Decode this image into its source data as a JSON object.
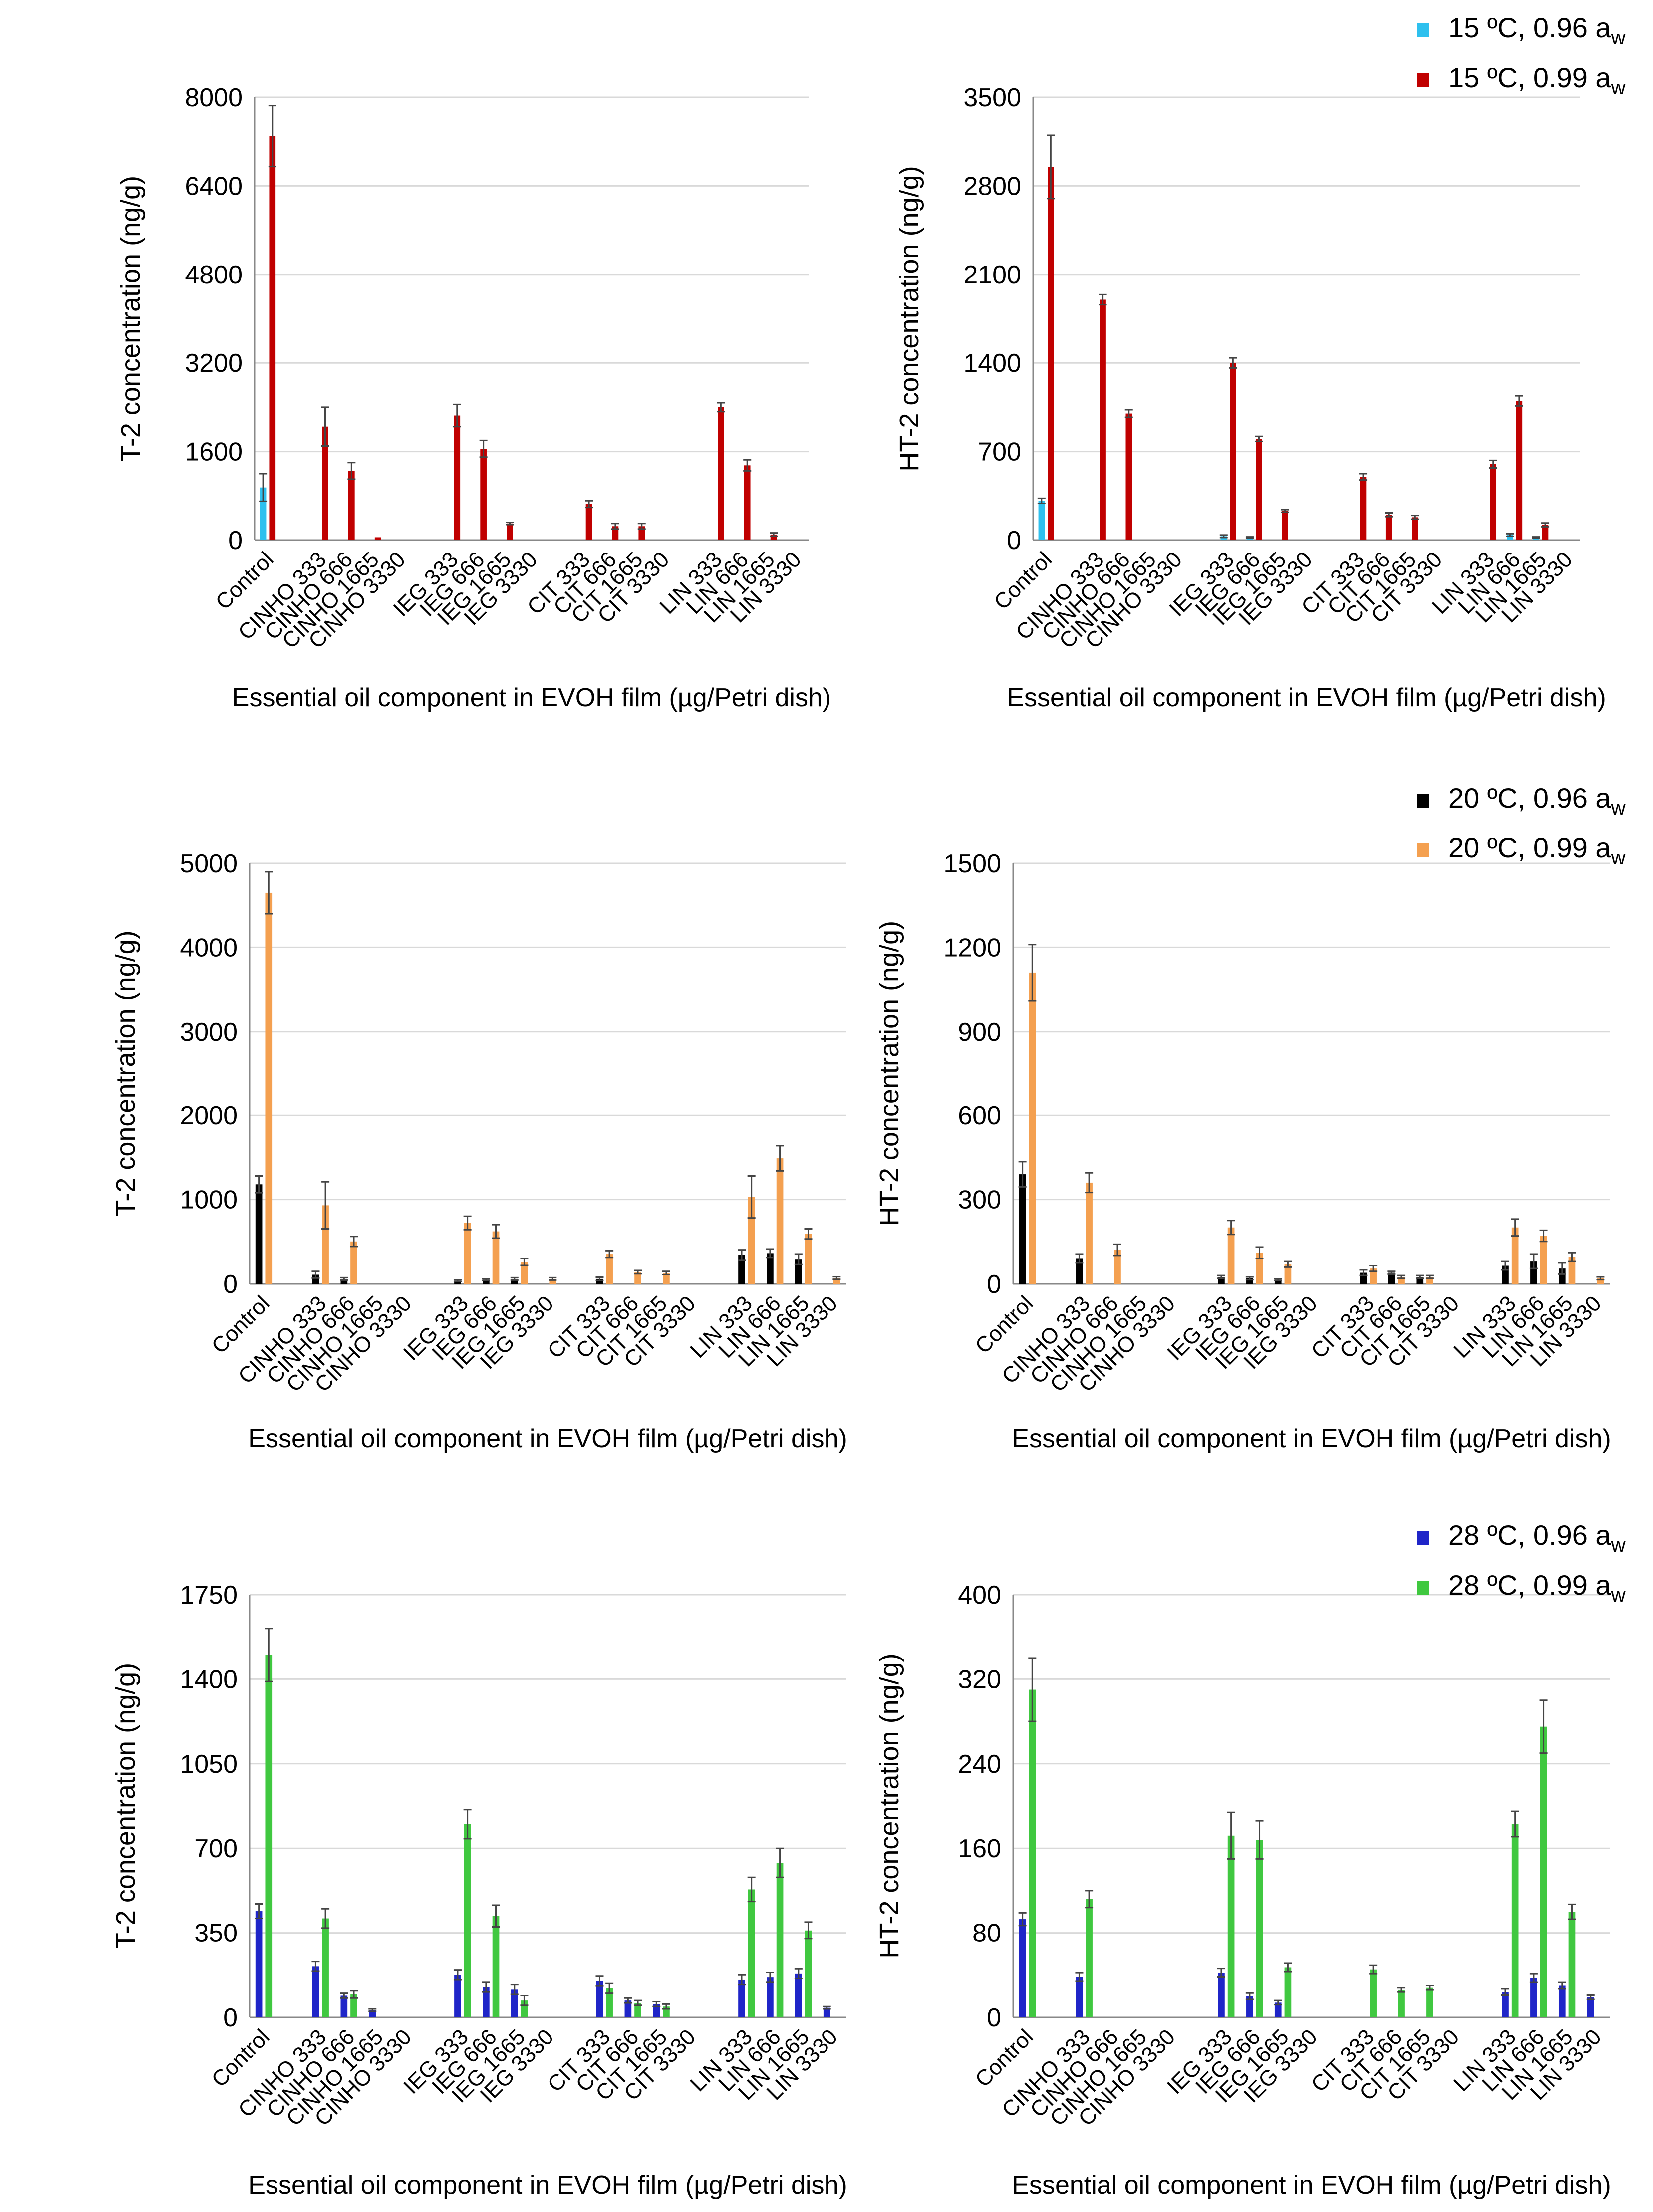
{
  "categories": [
    "Control",
    "CINHO 333",
    "CINHO 666",
    "CINHO 1665",
    "CINHO 3330",
    "IEG 333",
    "IEG 666",
    "IEG 1665",
    "IEG 3330",
    "CIT 333",
    "CIT 666",
    "CIT 1665",
    "CIT 3330",
    "LIN 333",
    "LIN 666",
    "LIN 1665",
    "LIN 3330"
  ],
  "xlabel": "Essential oil component in EVOH film (µg/Petri dish)",
  "legends": [
    {
      "items": [
        {
          "label": "15 ºC, 0.96 a",
          "sub": "w",
          "color": "#2EC0EE"
        },
        {
          "label": "15 ºC, 0.99 a",
          "sub": "w",
          "color": "#C00000"
        }
      ]
    },
    {
      "items": [
        {
          "label": "20 ºC, 0.96 a",
          "sub": "w",
          "color": "#000000"
        },
        {
          "label": "20 ºC, 0.99 a",
          "sub": "w",
          "color": "#F4A050"
        }
      ]
    },
    {
      "items": [
        {
          "label": "28 ºC, 0.96 a",
          "sub": "w",
          "color": "#1F25C8"
        },
        {
          "label": "28 ºC, 0.99 a",
          "sub": "w",
          "color": "#40C840"
        }
      ]
    }
  ],
  "chart_data": [
    {
      "type": "bar",
      "row": 0,
      "col": 0,
      "ylabel": "T-2 concentration (ng/g)",
      "ylim": [
        0,
        8000
      ],
      "ticks": [
        0,
        1600,
        3200,
        4800,
        6400,
        8000
      ],
      "series": [
        {
          "name": "15 ºC, 0.96 aw",
          "color": "#2EC0EE",
          "values": [
            950,
            0,
            0,
            0,
            0,
            0,
            0,
            0,
            0,
            0,
            0,
            0,
            0,
            0,
            0,
            0,
            0
          ],
          "errors": [
            250,
            0,
            0,
            0,
            0,
            0,
            0,
            0,
            0,
            0,
            0,
            0,
            0,
            0,
            0,
            0,
            0
          ]
        },
        {
          "name": "15 ºC, 0.99 aw",
          "color": "#C00000",
          "values": [
            7300,
            2050,
            1250,
            50,
            0,
            2250,
            1650,
            300,
            0,
            650,
            250,
            250,
            0,
            2400,
            1350,
            100,
            0
          ],
          "errors": [
            550,
            350,
            150,
            0,
            0,
            200,
            150,
            20,
            0,
            60,
            50,
            50,
            0,
            80,
            100,
            30,
            0
          ]
        }
      ]
    },
    {
      "type": "bar",
      "row": 0,
      "col": 1,
      "ylabel": "HT-2 concentration (ng/g)",
      "ylim": [
        0,
        3500
      ],
      "ticks": [
        0,
        700,
        1400,
        2100,
        2800,
        3500
      ],
      "series": [
        {
          "name": "15 ºC, 0.96 aw",
          "color": "#2EC0EE",
          "values": [
            310,
            0,
            0,
            0,
            0,
            30,
            20,
            0,
            0,
            0,
            0,
            0,
            0,
            0,
            40,
            20,
            0
          ],
          "errors": [
            20,
            0,
            0,
            0,
            0,
            10,
            5,
            0,
            0,
            0,
            0,
            0,
            0,
            0,
            10,
            5,
            0
          ]
        },
        {
          "name": "15 ºC, 0.99 aw",
          "color": "#C00000",
          "values": [
            2950,
            1900,
            1000,
            0,
            0,
            1400,
            800,
            230,
            0,
            500,
            200,
            180,
            0,
            600,
            1100,
            120,
            0
          ],
          "errors": [
            250,
            40,
            30,
            0,
            0,
            40,
            20,
            10,
            0,
            25,
            15,
            15,
            0,
            30,
            40,
            15,
            0
          ]
        }
      ]
    },
    {
      "type": "bar",
      "row": 1,
      "col": 0,
      "ylabel": "T-2 concentration (ng/g)",
      "ylim": [
        0,
        5000
      ],
      "ticks": [
        0,
        1000,
        2000,
        3000,
        4000,
        5000
      ],
      "series": [
        {
          "name": "20 ºC, 0.96 aw",
          "color": "#000000",
          "values": [
            1180,
            110,
            60,
            0,
            0,
            40,
            50,
            60,
            0,
            60,
            0,
            0,
            0,
            340,
            360,
            290,
            0
          ],
          "errors": [
            100,
            40,
            15,
            0,
            0,
            10,
            10,
            15,
            0,
            20,
            0,
            0,
            0,
            60,
            50,
            60,
            0
          ]
        },
        {
          "name": "20 ºC, 0.99 aw",
          "color": "#F4A050",
          "values": [
            4650,
            930,
            500,
            0,
            0,
            720,
            620,
            260,
            60,
            350,
            140,
            130,
            0,
            1030,
            1490,
            590,
            70
          ],
          "errors": [
            250,
            280,
            60,
            0,
            0,
            80,
            80,
            40,
            15,
            40,
            20,
            20,
            0,
            250,
            150,
            60,
            15
          ]
        }
      ]
    },
    {
      "type": "bar",
      "row": 1,
      "col": 1,
      "ylabel": "HT-2 concentration (ng/g)",
      "ylim": [
        0,
        1500
      ],
      "ticks": [
        0,
        300,
        600,
        900,
        1200,
        1500
      ],
      "series": [
        {
          "name": "20 ºC, 0.96 aw",
          "color": "#000000",
          "values": [
            390,
            90,
            0,
            0,
            0,
            25,
            20,
            15,
            0,
            40,
            40,
            25,
            0,
            65,
            80,
            55,
            0
          ],
          "errors": [
            45,
            15,
            0,
            0,
            0,
            5,
            5,
            3,
            0,
            10,
            5,
            5,
            0,
            15,
            25,
            20,
            0
          ]
        },
        {
          "name": "20 ºC, 0.99 aw",
          "color": "#F4A050",
          "values": [
            1110,
            360,
            120,
            0,
            0,
            200,
            110,
            70,
            0,
            55,
            25,
            25,
            0,
            200,
            170,
            95,
            20
          ],
          "errors": [
            100,
            35,
            20,
            0,
            0,
            25,
            20,
            10,
            0,
            10,
            5,
            5,
            0,
            30,
            20,
            15,
            5
          ]
        }
      ]
    },
    {
      "type": "bar",
      "row": 2,
      "col": 0,
      "ylabel": "T-2 concentration (ng/g)",
      "ylim": [
        0,
        1750
      ],
      "ticks": [
        0,
        350,
        700,
        1050,
        1400,
        1750
      ],
      "series": [
        {
          "name": "28 ºC, 0.96 aw",
          "color": "#1F25C8",
          "values": [
            440,
            210,
            90,
            30,
            0,
            175,
            125,
            115,
            0,
            150,
            70,
            55,
            0,
            155,
            165,
            180,
            40
          ],
          "errors": [
            30,
            20,
            10,
            5,
            0,
            20,
            20,
            20,
            0,
            20,
            10,
            10,
            0,
            20,
            20,
            20,
            5
          ]
        },
        {
          "name": "28 ºC, 0.99 aw",
          "color": "#40C840",
          "values": [
            1500,
            410,
            95,
            0,
            0,
            800,
            420,
            70,
            0,
            120,
            60,
            45,
            0,
            530,
            640,
            360,
            0
          ],
          "errors": [
            110,
            40,
            15,
            0,
            0,
            60,
            45,
            20,
            0,
            20,
            10,
            10,
            0,
            50,
            60,
            35,
            0
          ]
        }
      ]
    },
    {
      "type": "bar",
      "row": 2,
      "col": 1,
      "ylabel": "HT-2 concentration (ng/g)",
      "ylim": [
        0,
        400
      ],
      "ticks": [
        0,
        80,
        160,
        240,
        320,
        400
      ],
      "series": [
        {
          "name": "28 ºC, 0.96 aw",
          "color": "#1F25C8",
          "values": [
            93,
            38,
            0,
            0,
            0,
            42,
            20,
            14,
            0,
            0,
            0,
            0,
            0,
            24,
            37,
            30,
            19
          ],
          "errors": [
            6,
            4,
            0,
            0,
            0,
            4,
            3,
            2,
            0,
            0,
            0,
            0,
            0,
            3,
            4,
            3,
            2
          ]
        },
        {
          "name": "28 ºC, 0.99 aw",
          "color": "#40C840",
          "values": [
            310,
            112,
            0,
            0,
            0,
            172,
            168,
            47,
            0,
            45,
            26,
            28,
            0,
            183,
            275,
            100,
            0
          ],
          "errors": [
            30,
            8,
            0,
            0,
            0,
            22,
            18,
            4,
            0,
            4,
            2,
            2,
            0,
            12,
            25,
            7,
            0
          ]
        }
      ]
    }
  ]
}
